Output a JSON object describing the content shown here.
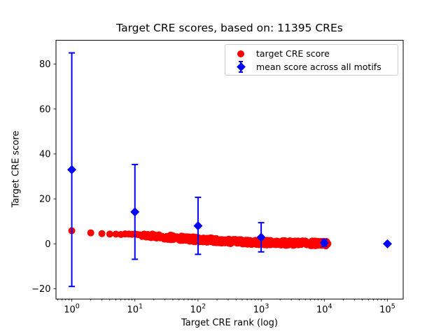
{
  "figure": {
    "background": "#ffffff",
    "text_color": "#000000",
    "axis_color": "#000000",
    "legend_border_color": "#cccccc"
  },
  "chart_data": {
    "type": "scatter",
    "title": "Target CRE scores, based on: 11395 CREs",
    "xlabel": "Target CRE rank (log)",
    "ylabel": "Target CRE score",
    "x_scale": "log",
    "xlim": [
      0.5623,
      177828
    ],
    "ylim": [
      -24.6,
      90.6
    ],
    "x_tick_exponents": [
      0,
      1,
      2,
      3,
      4,
      5
    ],
    "x_tick_base": "10",
    "y_ticks": {
      "values": [
        -20,
        0,
        20,
        40,
        60,
        80
      ],
      "labels": [
        "−20",
        "0",
        "20",
        "40",
        "60",
        "80"
      ]
    },
    "grid": false,
    "legend_position": "upper right",
    "n_cres": 11395,
    "series": [
      {
        "name": "target CRE score",
        "color": "#ff0000",
        "marker": "circle",
        "point_count": 11395,
        "anchors_log10rank_value": [
          [
            0,
            5.8
          ],
          [
            0.301,
            4.9
          ],
          [
            0.477,
            4.5
          ],
          [
            0.602,
            4.3
          ],
          [
            0.778,
            4.1
          ],
          [
            1.0,
            3.85
          ],
          [
            1.25,
            3.55
          ],
          [
            1.5,
            3.0
          ],
          [
            1.75,
            2.45
          ],
          [
            2.0,
            1.85
          ],
          [
            2.25,
            1.6
          ],
          [
            2.5,
            1.15
          ],
          [
            2.75,
            0.8
          ],
          [
            3.0,
            0.55
          ],
          [
            3.25,
            0.4
          ],
          [
            3.5,
            0.3
          ],
          [
            3.75,
            0.2
          ],
          [
            4.057,
            0.1
          ]
        ]
      },
      {
        "name": "mean score across all motifs",
        "color": "#0000ff",
        "marker": "diamond",
        "points_rank_mean_err": [
          [
            1,
            33.0,
            52.0
          ],
          [
            10,
            14.2,
            21.1
          ],
          [
            100,
            8.0,
            12.7
          ],
          [
            1000,
            2.9,
            6.5
          ],
          [
            10000,
            0.4,
            1.5
          ],
          [
            100000,
            0.0,
            0.2
          ]
        ]
      }
    ]
  }
}
